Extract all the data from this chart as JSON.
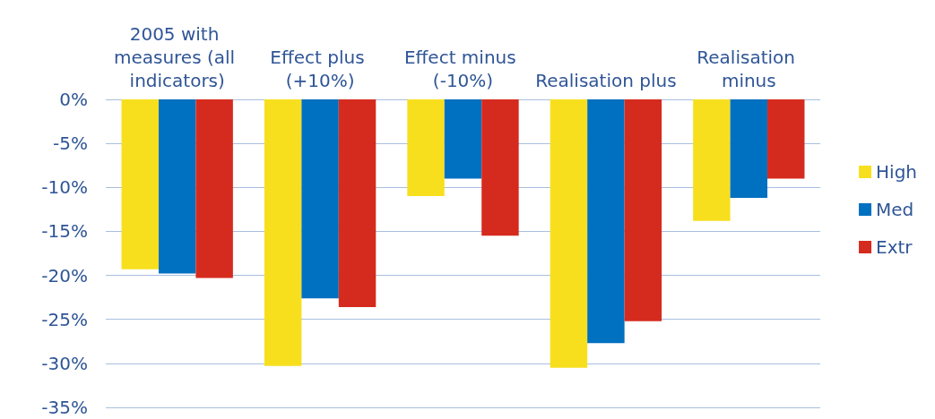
{
  "chart_data": {
    "type": "bar",
    "categories": [
      "2005 with measures (all indicators)",
      "Effect plus (+10%)",
      "Effect minus (-10%)",
      "Realisation plus",
      "Realisation minus"
    ],
    "series": [
      {
        "name": "High",
        "color": "#f7df1e",
        "values": [
          -19.3,
          -30.3,
          -11.0,
          -30.5,
          -13.8
        ]
      },
      {
        "name": "Med",
        "color": "#0070c0",
        "values": [
          -19.8,
          -22.6,
          -9.0,
          -27.7,
          -11.2
        ]
      },
      {
        "name": "Extr",
        "color": "#d52b1e",
        "values": [
          -20.3,
          -23.6,
          -15.5,
          -25.2,
          -9.0
        ]
      }
    ],
    "ylim": [
      -35,
      0
    ],
    "yticks": [
      {
        "value": 0,
        "label": "0%"
      },
      {
        "value": -5,
        "label": "-5%"
      },
      {
        "value": -10,
        "label": "-10%"
      },
      {
        "value": -15,
        "label": "-15%"
      },
      {
        "value": -20,
        "label": "-20%"
      },
      {
        "value": -25,
        "label": "-25%"
      },
      {
        "value": -30,
        "label": "-30%"
      },
      {
        "value": -35,
        "label": "-35%"
      }
    ],
    "grid": "y",
    "legend": "right"
  }
}
